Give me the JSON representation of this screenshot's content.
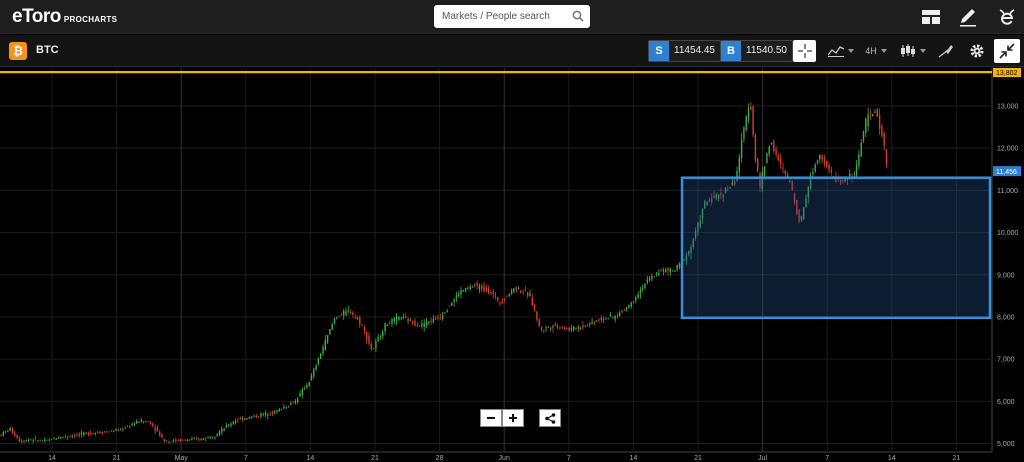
{
  "header": {
    "logo_main": "eToro",
    "logo_sub": "PROCHARTS",
    "search_placeholder": "Markets / People search",
    "icons": [
      "layout-icon",
      "pencil-icon",
      "etoro-profile-icon"
    ]
  },
  "instrument": {
    "symbol_glyph": "₿",
    "name": "BTC",
    "sell_tag": "S",
    "sell_price": "11454.45",
    "buy_tag": "B",
    "buy_price": "11540.50",
    "timeframe": "4H"
  },
  "colors": {
    "up": "#3fae4c",
    "down": "#d8402e",
    "high_line": "#f2b600",
    "current_price": "#2f80d1",
    "box_border": "#3a8fd6"
  },
  "chart_data": {
    "type": "candlestick",
    "symbol": "BTC",
    "timeframe": "4H",
    "ylim": [
      4800,
      13900
    ],
    "y_ticks": [
      5000,
      6000,
      7000,
      8000,
      9000,
      10000,
      11000,
      12000,
      13000
    ],
    "y_tick_labels": [
      "5,000",
      "6,000",
      "7,000",
      "8,000",
      "9,000",
      "10,000",
      "11,000",
      "12,000",
      "13,000"
    ],
    "x_labels": [
      "14",
      "21",
      "May",
      "7",
      "14",
      "21",
      "28",
      "Jun",
      "7",
      "14",
      "21",
      "Jul",
      "7",
      "14",
      "21"
    ],
    "high_marker": {
      "value": 13802,
      "label": "13,802"
    },
    "current_price": {
      "value": 11456,
      "label": "11,456"
    },
    "highlight_box": {
      "price_top": 11300,
      "price_bottom": 7980
    },
    "path_points": [
      [
        0,
        5200
      ],
      [
        10,
        5350
      ],
      [
        20,
        5050
      ],
      [
        30,
        5100
      ],
      [
        45,
        5060
      ],
      [
        60,
        5150
      ],
      [
        75,
        5200
      ],
      [
        90,
        5250
      ],
      [
        105,
        5280
      ],
      [
        120,
        5320
      ],
      [
        140,
        5540
      ],
      [
        150,
        5500
      ],
      [
        165,
        5050
      ],
      [
        180,
        5080
      ],
      [
        200,
        5100
      ],
      [
        215,
        5200
      ],
      [
        235,
        5550
      ],
      [
        255,
        5650
      ],
      [
        275,
        5750
      ],
      [
        295,
        6000
      ],
      [
        310,
        6500
      ],
      [
        325,
        7400
      ],
      [
        335,
        8000
      ],
      [
        350,
        8150
      ],
      [
        362,
        7800
      ],
      [
        372,
        7200
      ],
      [
        385,
        7800
      ],
      [
        400,
        8000
      ],
      [
        420,
        7800
      ],
      [
        440,
        8000
      ],
      [
        460,
        8600
      ],
      [
        475,
        8750
      ],
      [
        490,
        8600
      ],
      [
        500,
        8350
      ],
      [
        515,
        8700
      ],
      [
        530,
        8500
      ],
      [
        540,
        7700
      ],
      [
        555,
        7800
      ],
      [
        570,
        7700
      ],
      [
        585,
        7800
      ],
      [
        600,
        7950
      ],
      [
        615,
        8000
      ],
      [
        630,
        8300
      ],
      [
        645,
        8800
      ],
      [
        660,
        9100
      ],
      [
        675,
        9100
      ],
      [
        690,
        9600
      ],
      [
        705,
        10700
      ],
      [
        720,
        10900
      ],
      [
        735,
        11200
      ],
      [
        745,
        12600
      ],
      [
        750,
        13200
      ],
      [
        755,
        11800
      ],
      [
        760,
        11100
      ],
      [
        770,
        12200
      ],
      [
        780,
        11600
      ],
      [
        790,
        11200
      ],
      [
        800,
        10200
      ],
      [
        810,
        11300
      ],
      [
        820,
        11900
      ],
      [
        830,
        11400
      ],
      [
        840,
        11200
      ],
      [
        855,
        11400
      ],
      [
        865,
        12600
      ],
      [
        875,
        12900
      ],
      [
        882,
        12300
      ],
      [
        888,
        11456
      ]
    ]
  }
}
